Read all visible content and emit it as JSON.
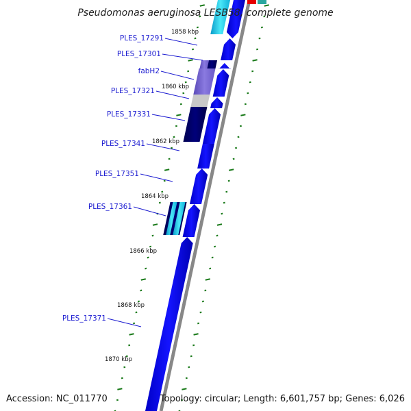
{
  "title": "Pseudomonas aeruginosa LESB58, complete genome",
  "accession": "Accession: NC_011770",
  "topology": "Topology: circular; Length: 6,601,757 bp; Genes: 6,026",
  "kbp_labels": [
    "1858 kbp",
    "1860 kbp",
    "1862 kbp",
    "1864 kbp",
    "1866 kbp",
    "1868 kbp",
    "1870 kbp"
  ],
  "gene_labels": [
    "PLES_17291",
    "PLES_17301",
    "fabH2",
    "PLES_17321",
    "PLES_17331",
    "PLES_17341",
    "PLES_17351",
    "PLES_17361",
    "PLES_17371"
  ],
  "colors": {
    "gene": "#0a0af0",
    "backbone": "#8c8c8c",
    "tick": "#1a7a1a",
    "label": "#1a1ad0",
    "navy": "#00006e",
    "lavender": "#7c6cd0",
    "gray": "#c8c8c8",
    "cyan": "#22d6e6",
    "red": "#e60000"
  }
}
